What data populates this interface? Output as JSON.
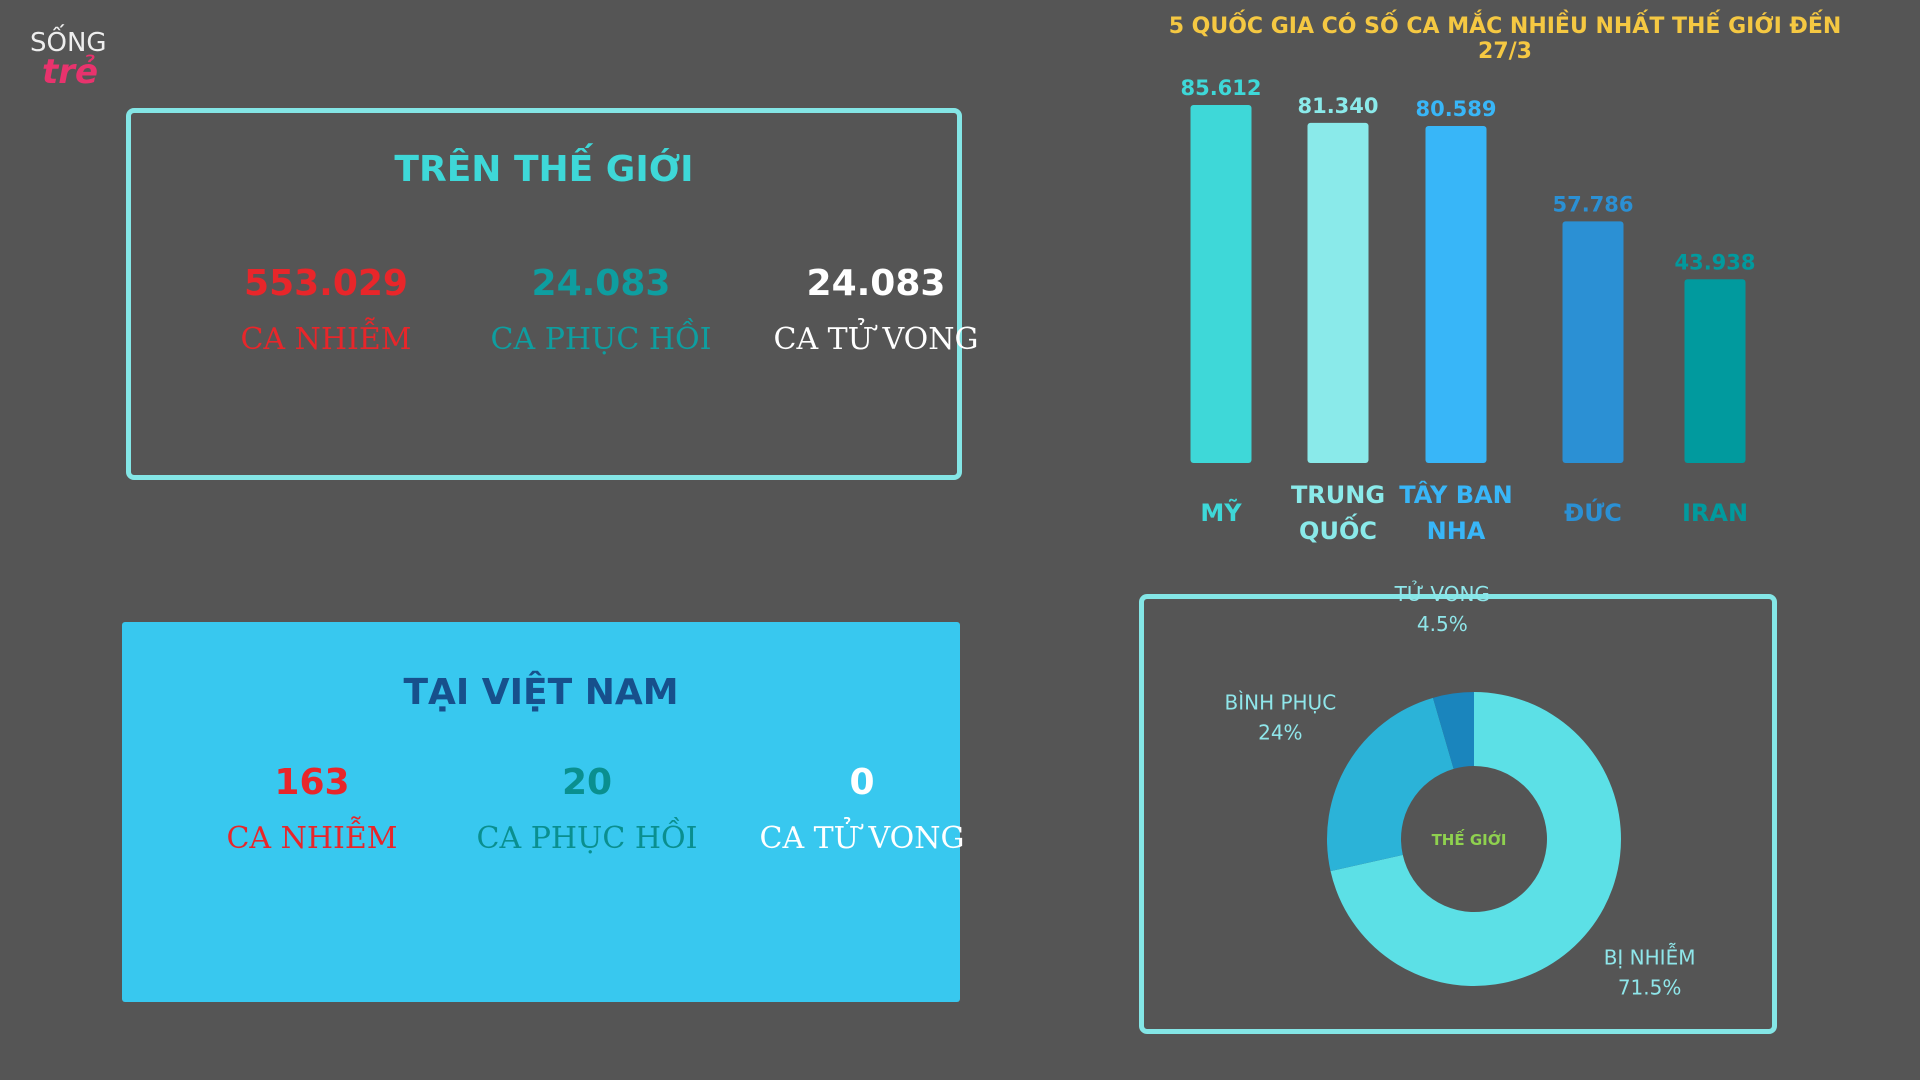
{
  "logo": {
    "line1": "SỐNG",
    "line2": "trẻ"
  },
  "world": {
    "title": "TRÊN THẾ GIỚI",
    "stats": [
      {
        "value": "553.029",
        "label": "CA NHIỄM"
      },
      {
        "value": "24.083",
        "label": "CA PHỤC HỒI"
      },
      {
        "value": "24.083",
        "label": "CA TỬ VONG"
      }
    ]
  },
  "vietnam": {
    "title": "TẠI VIỆT NAM",
    "stats": [
      {
        "value": "163",
        "label": "CA NHIỄM"
      },
      {
        "value": "20",
        "label": "CA PHỤC HỒI"
      },
      {
        "value": "0",
        "label": "CA TỬ VONG"
      }
    ]
  },
  "chart_data": [
    {
      "type": "bar",
      "title": "5 QUỐC GIA CÓ SỐ CA MẮC NHIỀU NHẤT THẾ GIỚI ĐẾN 27/3",
      "categories": [
        "MỸ",
        "TRUNG QUỐC",
        "TÂY BAN NHA",
        "ĐỨC",
        "IRAN"
      ],
      "values": [
        85612,
        81340,
        80589,
        57786,
        43938
      ],
      "value_labels": [
        "85.612",
        "81.340",
        "80.589",
        "57.786",
        "43.938"
      ],
      "colors": [
        "#3ed8d8",
        "#8aeaea",
        "#38b6f8",
        "#2b90d4",
        "#019a9e"
      ]
    },
    {
      "type": "pie",
      "center_label": "THẾ GIỚI",
      "categories": [
        "BỊ NHIỄM",
        "BÌNH PHỤC",
        "TỬ VONG"
      ],
      "values": [
        71.5,
        24,
        4.5
      ],
      "value_labels": [
        "71.5%",
        "24%",
        "4.5%"
      ],
      "colors": [
        "#5ce0e6",
        "#2bb3d8",
        "#1a85bd"
      ]
    }
  ]
}
